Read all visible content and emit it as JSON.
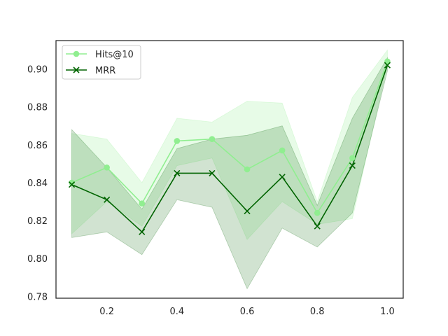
{
  "chart_data": {
    "type": "line",
    "title": "",
    "xlabel": "",
    "ylabel": "",
    "x": [
      0.1,
      0.2,
      0.3,
      0.4,
      0.5,
      0.6,
      0.7,
      0.8,
      0.9,
      1.0
    ],
    "xlim": [
      0.055,
      1.045
    ],
    "ylim": [
      0.779,
      0.915
    ],
    "xticks": [
      "0.2",
      "0.4",
      "0.6",
      "0.8",
      "1.0"
    ],
    "yticks": [
      "0.78",
      "0.80",
      "0.82",
      "0.84",
      "0.86",
      "0.88",
      "0.90"
    ],
    "grid": false,
    "legend_position": "top-left",
    "series": [
      {
        "name": "Hits@10",
        "color": "#90ee90",
        "marker": "circle",
        "values": [
          0.84,
          0.848,
          0.829,
          0.862,
          0.863,
          0.847,
          0.857,
          0.824,
          0.853,
          0.904
        ],
        "band_lower": [
          0.813,
          0.83,
          0.817,
          0.849,
          0.853,
          0.81,
          0.83,
          0.818,
          0.821,
          0.902
        ],
        "band_upper": [
          0.866,
          0.863,
          0.84,
          0.874,
          0.872,
          0.883,
          0.882,
          0.83,
          0.885,
          0.91
        ]
      },
      {
        "name": "MRR",
        "color": "#006400",
        "marker": "x",
        "values": [
          0.839,
          0.831,
          0.814,
          0.845,
          0.845,
          0.825,
          0.843,
          0.817,
          0.849,
          0.902
        ],
        "band_lower": [
          0.811,
          0.814,
          0.802,
          0.831,
          0.827,
          0.784,
          0.816,
          0.806,
          0.824,
          0.899
        ],
        "band_upper": [
          0.868,
          0.848,
          0.826,
          0.858,
          0.863,
          0.865,
          0.87,
          0.828,
          0.874,
          0.906
        ]
      }
    ]
  }
}
